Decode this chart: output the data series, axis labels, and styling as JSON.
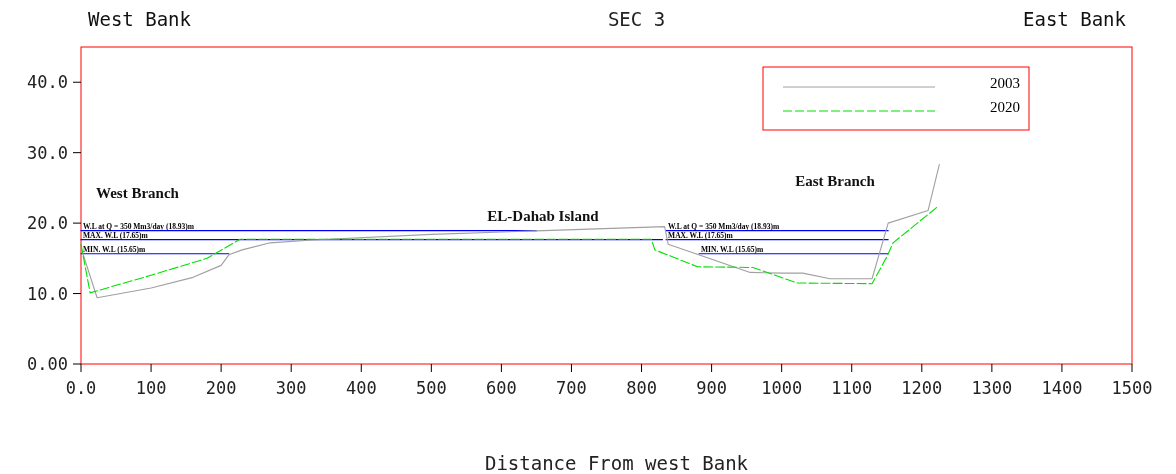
{
  "chart_data": {
    "type": "line",
    "title": "SEC 3",
    "xlabel": "Distance From west Bank",
    "annotations": [
      "West Bank",
      "East Bank",
      "West Branch",
      "EL-Dahab Island",
      "East Branch",
      {
        "text": "W.L at Q = 350 Mm3/day (18.93)m",
        "x": 0,
        "y": 18.93
      },
      {
        "text": "MAX. W.L (17.65)m",
        "x": 0,
        "y": 17.65
      },
      {
        "text": "MIN. W.L (15.65)m",
        "x": 0,
        "y": 15.65
      },
      {
        "text": "W.L at Q = 350 Mm3/day (18.93)m",
        "x": 835,
        "y": 18.93
      },
      {
        "text": "MAX. W.L (17.65)m",
        "x": 835,
        "y": 17.65
      },
      {
        "text": "MIN. W.L (15.65)m",
        "x": 882,
        "y": 15.65
      }
    ],
    "xlim": [
      0,
      1500
    ],
    "xticks": [
      {
        "value": 0,
        "label": "0.0"
      },
      100,
      200,
      300,
      400,
      500,
      600,
      700,
      800,
      900,
      1000,
      1100,
      1200,
      1300,
      1400,
      1500
    ],
    "ylim": [
      0,
      45
    ],
    "yticks": [
      {
        "value": 0,
        "label": "0.00"
      },
      {
        "value": 10,
        "label": "10.0"
      },
      {
        "value": 20,
        "label": "20.0"
      },
      {
        "value": 30,
        "label": "30.0"
      },
      {
        "value": 40,
        "label": "40.0"
      }
    ],
    "grid": false,
    "legend": "top right",
    "series": [
      {
        "name": "2003",
        "color": "#a0a0a0",
        "line_style": "solid",
        "x": [
          0,
          23,
          100,
          160,
          200,
          211,
          230,
          270,
          330,
          500,
          650,
          833,
          838,
          955,
          1000,
          1030,
          1069,
          1129,
          1152,
          1209,
          1225
        ],
        "values": [
          16.5,
          9.4,
          10.8,
          12.3,
          14,
          15.5,
          16.2,
          17.2,
          17.6,
          18.4,
          18.9,
          19.5,
          17,
          13,
          12.9,
          12.9,
          12.1,
          12.1,
          20,
          21.8,
          28.3
        ]
      },
      {
        "name": "2020",
        "color": "#00e000",
        "line_style": "dashed",
        "x": [
          0,
          13,
          100,
          180,
          227,
          814,
          819,
          880,
          959,
          1022,
          1129,
          1150,
          1159,
          1221
        ],
        "values": [
          17,
          10.1,
          12.6,
          15,
          17.7,
          17.7,
          16.2,
          13.8,
          13.7,
          11.5,
          11.4,
          15.2,
          17.2,
          22.2
        ]
      },
      {
        "color": "#0000ff",
        "x": [
          0,
          650
        ],
        "values": [
          18.93,
          18.93
        ]
      },
      {
        "color": "#0000ff",
        "x": [
          0,
          830
        ],
        "values": [
          17.65,
          17.65
        ]
      },
      {
        "color": "#0000ff",
        "x": [
          0,
          211
        ],
        "values": [
          15.65,
          15.65
        ]
      },
      {
        "color": "#0000ff",
        "x": [
          835,
          1152
        ],
        "values": [
          18.93,
          18.93
        ]
      },
      {
        "color": "#0000ff",
        "x": [
          835,
          1152
        ],
        "values": [
          17.65,
          17.65
        ]
      },
      {
        "color": "#0000ff",
        "x": [
          882,
          1152
        ],
        "values": [
          15.65,
          15.65
        ]
      }
    ]
  }
}
